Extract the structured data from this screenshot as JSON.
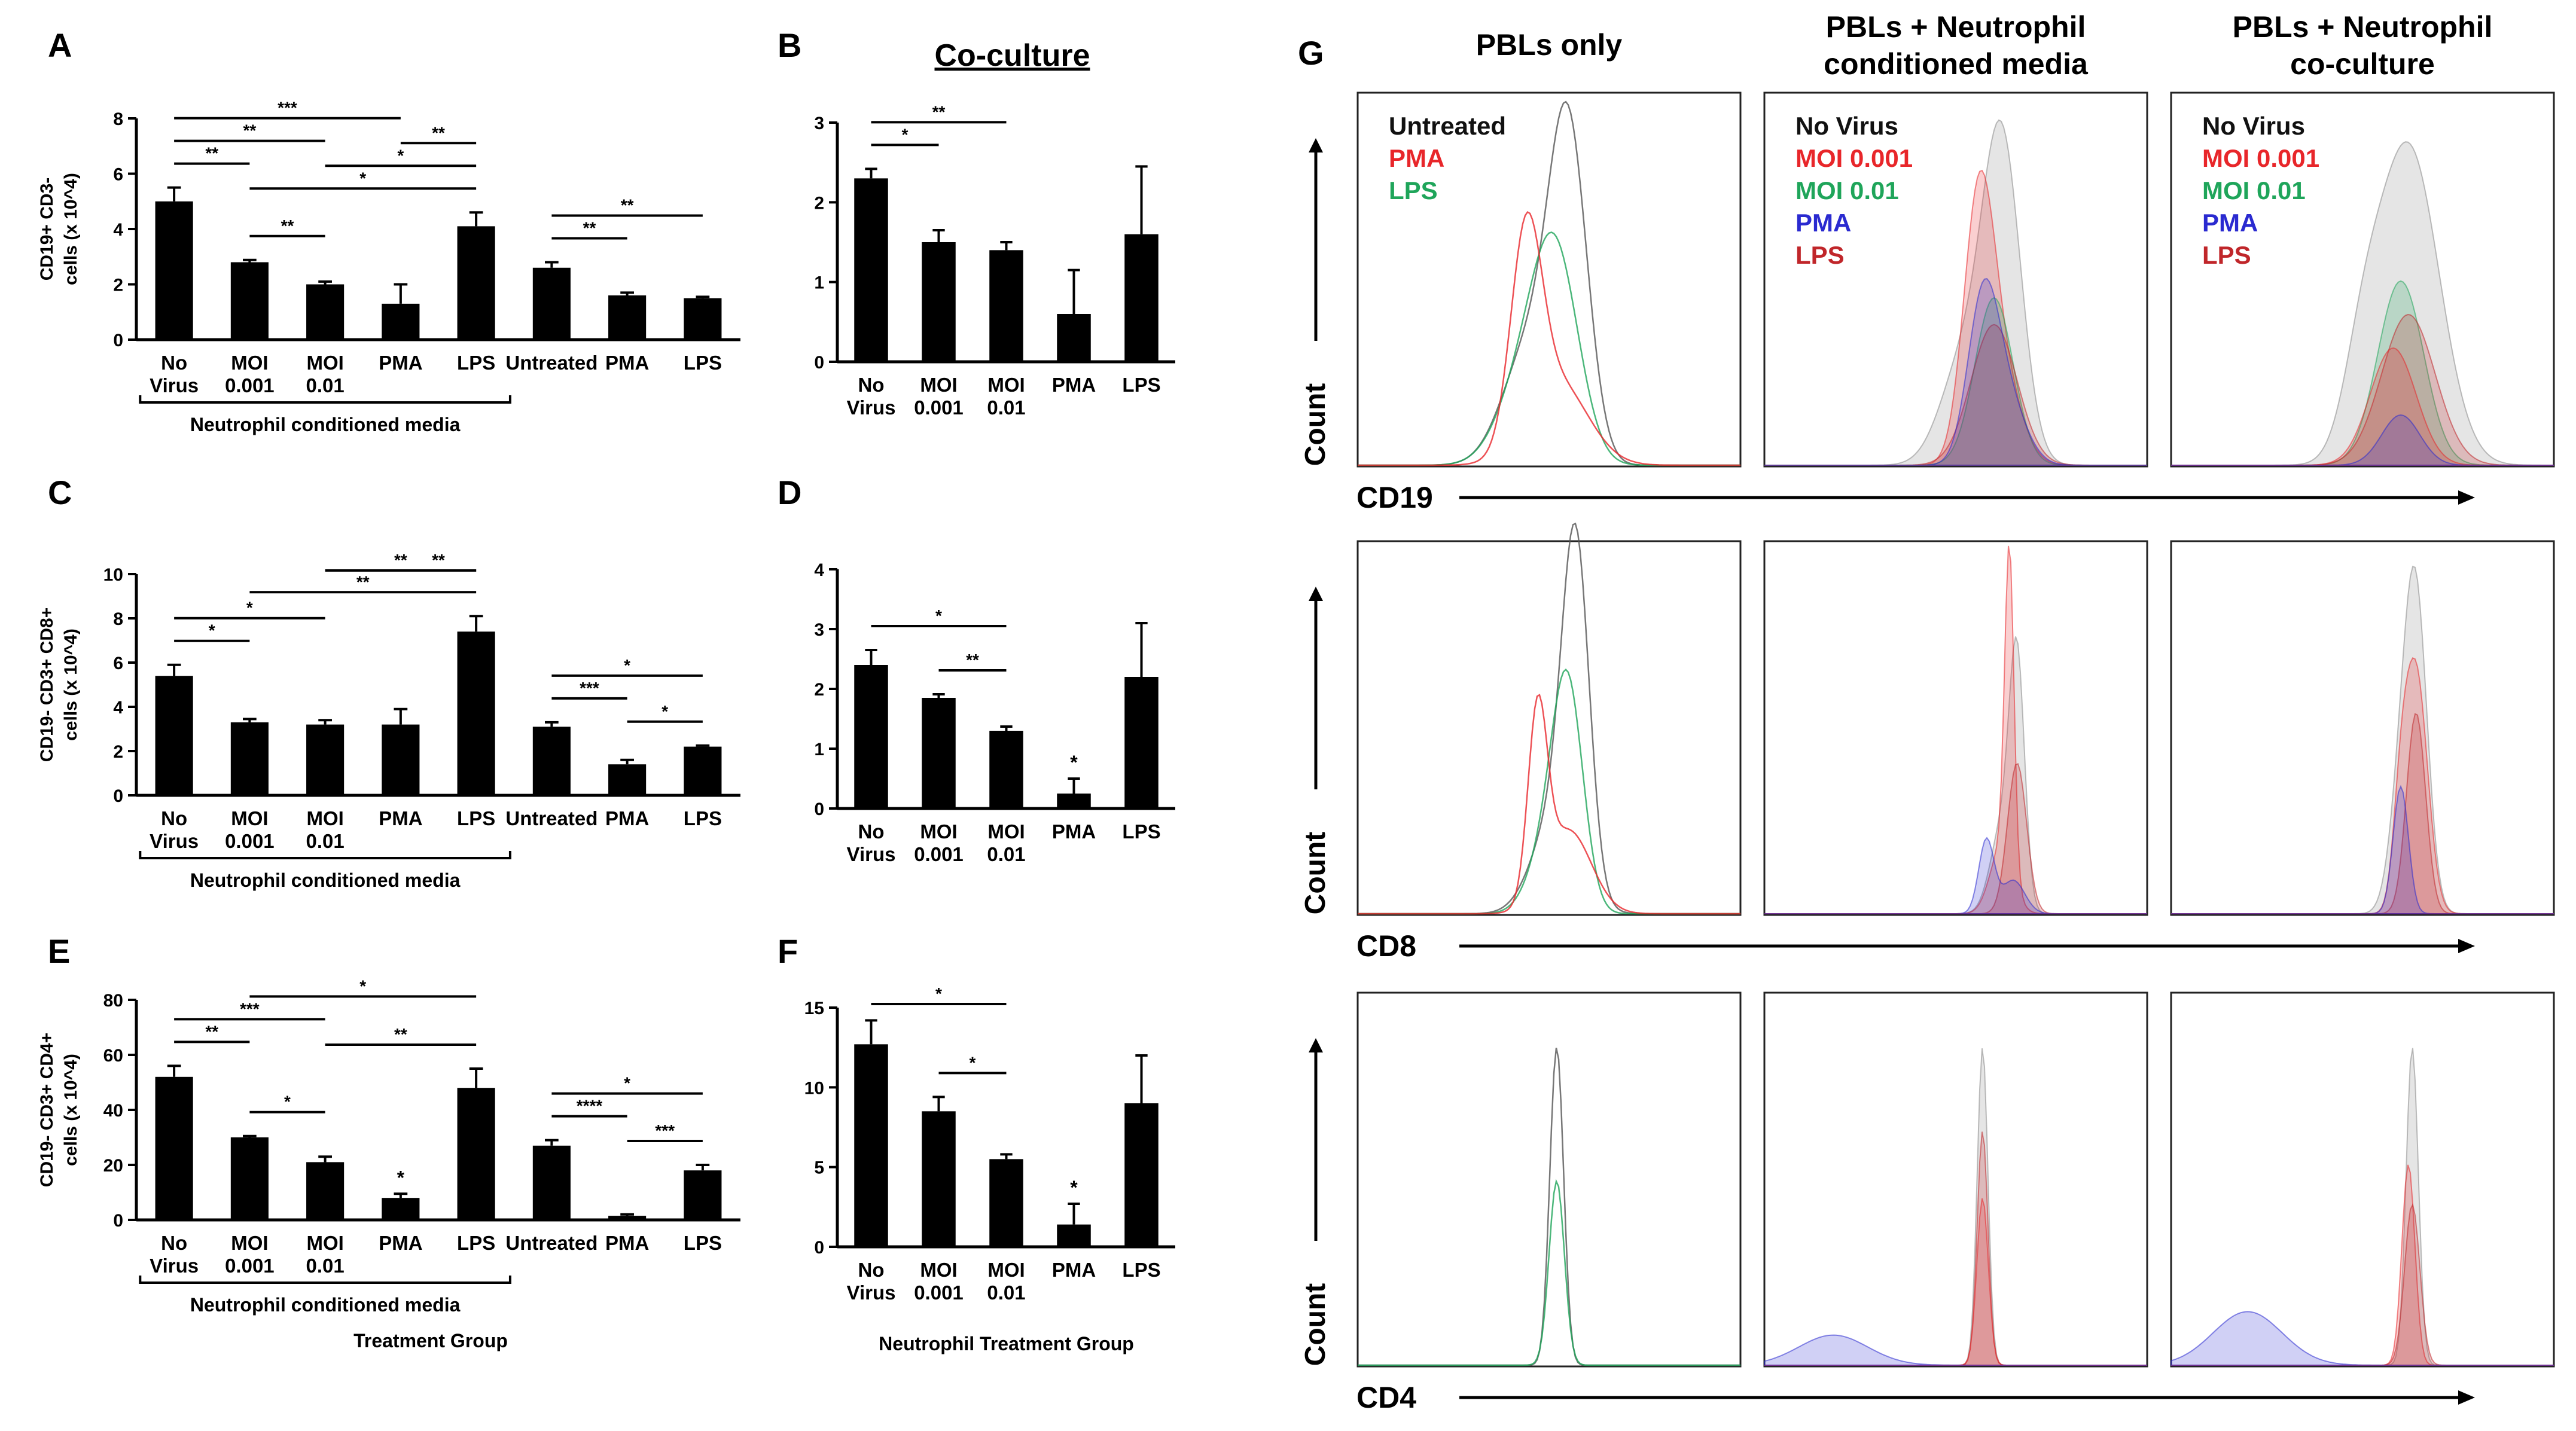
{
  "chart_data": [
    {
      "panel": "A",
      "type": "bar",
      "ylabel_lines": [
        "CD19+ CD3-",
        "cells (x 10^4)"
      ],
      "ylim": [
        0,
        8
      ],
      "yticks": [
        0,
        2,
        4,
        6,
        8
      ],
      "categories": [
        "No Virus",
        "MOI 0.001",
        "MOI 0.01",
        "PMA",
        "LPS",
        "Untreated",
        "PMA",
        "LPS"
      ],
      "values": [
        5.0,
        2.8,
        2.0,
        1.3,
        4.1,
        2.6,
        1.6,
        1.5
      ],
      "errors": [
        0.5,
        0.08,
        0.1,
        0.7,
        0.5,
        0.2,
        0.1,
        0.05
      ],
      "group_bracket": {
        "label": "Neutrophil  conditioned media",
        "from": 0,
        "to": 4
      },
      "significance": [
        {
          "from": 0,
          "to": 1,
          "label": "**"
        },
        {
          "from": 0,
          "to": 2,
          "label": "**"
        },
        {
          "from": 0,
          "to": 3,
          "label": "***"
        },
        {
          "from": 1,
          "to": 2,
          "label": "**"
        },
        {
          "from": 1,
          "to": 4,
          "label": "*"
        },
        {
          "from": 2,
          "to": 4,
          "label": "*"
        },
        {
          "from": 3,
          "to": 4,
          "label": "**"
        },
        {
          "from": 5,
          "to": 6,
          "label": "**"
        },
        {
          "from": 5,
          "to": 7,
          "label": "**"
        }
      ]
    },
    {
      "panel": "B",
      "type": "bar",
      "title": "Co-culture",
      "ylim": [
        0,
        3
      ],
      "yticks": [
        0,
        1,
        2,
        3
      ],
      "categories": [
        "No Virus",
        "MOI 0.001",
        "MOI 0.01",
        "PMA",
        "LPS"
      ],
      "values": [
        2.3,
        1.5,
        1.4,
        0.6,
        1.6
      ],
      "errors": [
        0.12,
        0.15,
        0.1,
        0.55,
        0.85
      ],
      "significance": [
        {
          "from": 0,
          "to": 1,
          "label": "*"
        },
        {
          "from": 0,
          "to": 2,
          "label": "**"
        }
      ]
    },
    {
      "panel": "C",
      "type": "bar",
      "ylabel_lines": [
        "CD19- CD3+ CD8+",
        "cells (x 10^4)"
      ],
      "ylim": [
        0,
        10
      ],
      "yticks": [
        0,
        2,
        4,
        6,
        8,
        10
      ],
      "categories": [
        "No Virus",
        "MOI 0.001",
        "MOI 0.01",
        "PMA",
        "LPS",
        "Untreated",
        "PMA",
        "LPS"
      ],
      "values": [
        5.4,
        3.3,
        3.2,
        3.2,
        7.4,
        3.1,
        1.4,
        2.2
      ],
      "errors": [
        0.5,
        0.15,
        0.2,
        0.7,
        0.7,
        0.2,
        0.2,
        0.05
      ],
      "group_bracket": {
        "label": "Neutrophil  conditioned media",
        "from": 0,
        "to": 4
      },
      "significance": [
        {
          "from": 0,
          "to": 1,
          "label": "*"
        },
        {
          "from": 0,
          "to": 2,
          "label": "*"
        },
        {
          "from": 1,
          "to": 4,
          "label": "**"
        },
        {
          "from": 2,
          "to": 4,
          "label": "**"
        },
        {
          "from": 3,
          "to": 4,
          "label": "**"
        },
        {
          "from": 5,
          "to": 6,
          "label": "***"
        },
        {
          "from": 5,
          "to": 7,
          "label": "*"
        },
        {
          "from": 6,
          "to": 7,
          "label": "*"
        }
      ]
    },
    {
      "panel": "D",
      "type": "bar",
      "ylim": [
        0,
        4
      ],
      "yticks": [
        0,
        1,
        2,
        3,
        4
      ],
      "categories": [
        "No Virus",
        "MOI 0.001",
        "MOI 0.01",
        "PMA",
        "LPS"
      ],
      "values": [
        2.4,
        1.85,
        1.3,
        0.25,
        2.2
      ],
      "errors": [
        0.25,
        0.06,
        0.07,
        0.25,
        0.9
      ],
      "point_labels": [
        {
          "index": 3,
          "label": "*"
        }
      ],
      "significance": [
        {
          "from": 0,
          "to": 2,
          "label": "*"
        },
        {
          "from": 1,
          "to": 2,
          "label": "**"
        }
      ]
    },
    {
      "panel": "E",
      "type": "bar",
      "ylabel_lines": [
        "CD19- CD3+ CD4+",
        "cells (x 10^4)"
      ],
      "xlabel": "Treatment Group",
      "ylim": [
        0,
        80
      ],
      "yticks": [
        0,
        20,
        40,
        60,
        80
      ],
      "categories": [
        "No Virus",
        "MOI 0.001",
        "MOI 0.01",
        "PMA",
        "LPS",
        "Untreated",
        "PMA",
        "LPS"
      ],
      "values": [
        52,
        30,
        21,
        8,
        48,
        27,
        1.5,
        18
      ],
      "errors": [
        4,
        0.5,
        2,
        1.5,
        7,
        2,
        0.5,
        2
      ],
      "point_labels": [
        {
          "index": 3,
          "label": "*"
        }
      ],
      "group_bracket": {
        "label": "Neutrophil  conditioned media",
        "from": 0,
        "to": 4
      },
      "significance": [
        {
          "from": 0,
          "to": 1,
          "label": "**"
        },
        {
          "from": 0,
          "to": 2,
          "label": "***"
        },
        {
          "from": 1,
          "to": 4,
          "label": "*"
        },
        {
          "from": 1,
          "to": 2,
          "label": "*"
        },
        {
          "from": 2,
          "to": 4,
          "label": "**"
        },
        {
          "from": 5,
          "to": 6,
          "label": "****"
        },
        {
          "from": 5,
          "to": 7,
          "label": "*"
        },
        {
          "from": 6,
          "to": 7,
          "label": "***"
        }
      ]
    },
    {
      "panel": "F",
      "type": "bar",
      "xlabel": "Neutrophil Treatment Group",
      "ylim": [
        0,
        15
      ],
      "yticks": [
        0,
        5,
        10,
        15
      ],
      "categories": [
        "No Virus",
        "MOI 0.001",
        "MOI 0.01",
        "PMA",
        "LPS"
      ],
      "values": [
        12.7,
        8.5,
        5.5,
        1.4,
        9.0
      ],
      "errors": [
        1.5,
        0.9,
        0.3,
        1.3,
        3.0
      ],
      "point_labels": [
        {
          "index": 3,
          "label": "*"
        }
      ],
      "significance": [
        {
          "from": 0,
          "to": 2,
          "label": "*"
        },
        {
          "from": 1,
          "to": 2,
          "label": "*"
        }
      ]
    }
  ],
  "flow_panel": {
    "panel": "G",
    "columns": [
      "PBLs only",
      "PBLs + Neutrophil conditioned media",
      "PBLs + Neutrophil co-culture"
    ],
    "column_lines": [
      [
        "PBLs only"
      ],
      [
        "PBLs + Neutrophil",
        "conditioned media"
      ],
      [
        "PBLs + Neutrophil",
        "co-culture"
      ]
    ],
    "rows": [
      "CD19",
      "CD8",
      "CD4"
    ],
    "count_label": "Count",
    "legends": [
      [
        {
          "label": "Untreated",
          "color": "#111111"
        },
        {
          "label": "PMA",
          "color": "#e8262a"
        },
        {
          "label": "LPS",
          "color": "#1fa55a"
        }
      ],
      [
        {
          "label": "No Virus",
          "color": "#111111"
        },
        {
          "label": "MOI 0.001",
          "color": "#e8262a"
        },
        {
          "label": "MOI 0.01",
          "color": "#1fa55a"
        },
        {
          "label": "PMA",
          "color": "#2a2ad0"
        },
        {
          "label": "LPS",
          "color": "#c0262a"
        }
      ],
      [
        {
          "label": "No Virus",
          "color": "#111111"
        },
        {
          "label": "MOI 0.001",
          "color": "#e8262a"
        },
        {
          "label": "MOI 0.01",
          "color": "#1fa55a"
        },
        {
          "label": "PMA",
          "color": "#2a2ad0"
        },
        {
          "label": "LPS",
          "color": "#c0262a"
        }
      ]
    ]
  }
}
